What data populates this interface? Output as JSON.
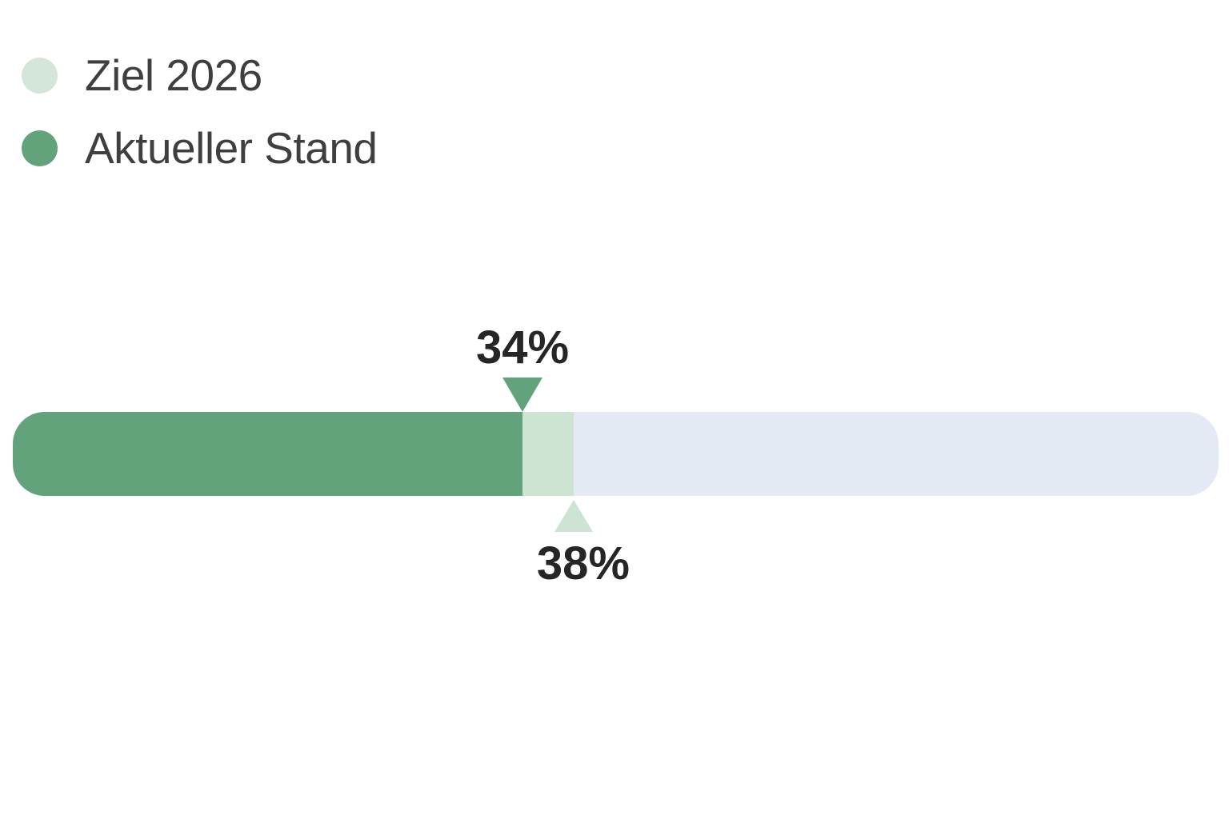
{
  "legend": {
    "items": [
      {
        "label": "Ziel 2026",
        "color": "#d3e6d9"
      },
      {
        "label": "Aktueller Stand",
        "color": "#63a37b"
      }
    ]
  },
  "chart_data": {
    "type": "bar",
    "title": "",
    "orientation": "horizontal",
    "series": [
      {
        "name": "Aktueller Stand",
        "value": 34,
        "unit": "%",
        "color": "#63a37b"
      },
      {
        "name": "Ziel 2026",
        "value": 38,
        "unit": "%",
        "color": "#cde4d3"
      }
    ],
    "current_label": "34%",
    "target_label": "38%",
    "track_color": "#e3eaf3",
    "legend_position": "top-left",
    "grid": false,
    "layout": {
      "current_fraction": 0.4227,
      "target_fraction": 0.4652,
      "target_label_fraction": 0.4731
    }
  }
}
